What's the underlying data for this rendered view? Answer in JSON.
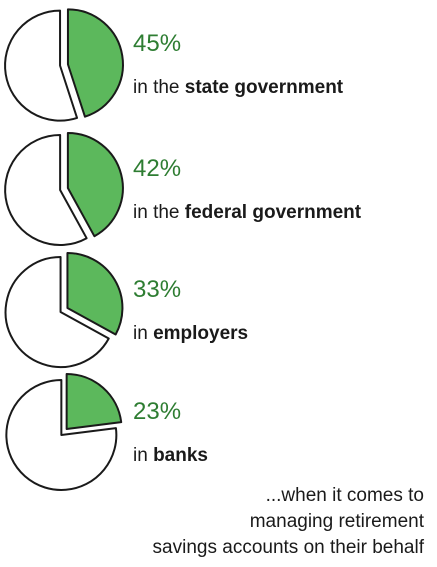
{
  "chart_data": {
    "type": "pie",
    "colors": {
      "trust": "#5cb85c",
      "other": "#ffffff",
      "outline": "#1a1a1a",
      "percent_text": "#2e7d32"
    },
    "items": [
      {
        "value": 45,
        "label": "45%",
        "prefix": "in the ",
        "entity": "state government"
      },
      {
        "value": 42,
        "label": "42%",
        "prefix": "in the ",
        "entity": "federal government"
      },
      {
        "value": 33,
        "label": "33%",
        "prefix": "in ",
        "entity": "employers"
      },
      {
        "value": 23,
        "label": "23%",
        "prefix": "in ",
        "entity": "banks"
      }
    ],
    "footnote": [
      "...when it comes to",
      "managing retirement",
      "savings accounts on their behalf"
    ]
  }
}
